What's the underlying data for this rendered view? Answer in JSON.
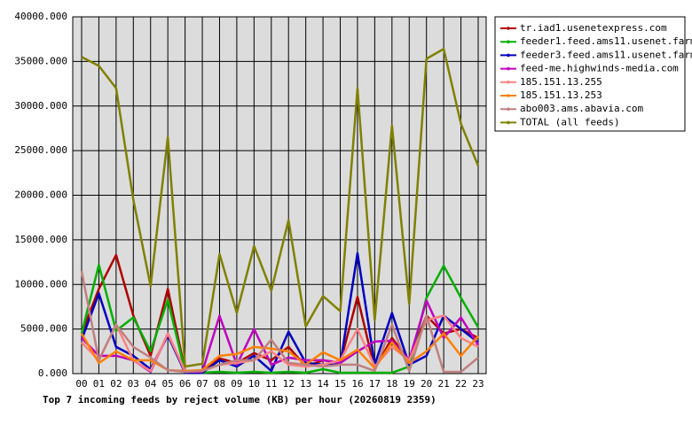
{
  "chart_data": {
    "type": "line",
    "title": "Top 7 incoming feeds by reject volume (KB) per hour (20260819 2359)",
    "categories": [
      "00",
      "01",
      "02",
      "03",
      "04",
      "05",
      "06",
      "07",
      "08",
      "09",
      "10",
      "11",
      "12",
      "13",
      "14",
      "15",
      "16",
      "17",
      "18",
      "19",
      "20",
      "21",
      "22",
      "23"
    ],
    "ylim": [
      0,
      40000
    ],
    "yticks": [
      {
        "value": 0,
        "label": "0.000"
      },
      {
        "value": 5000,
        "label": "5000.000"
      },
      {
        "value": 10000,
        "label": "10000.000"
      },
      {
        "value": 15000,
        "label": "15000.000"
      },
      {
        "value": 20000,
        "label": "20000.000"
      },
      {
        "value": 25000,
        "label": "25000.000"
      },
      {
        "value": 30000,
        "label": "30000.000"
      },
      {
        "value": 35000,
        "label": "35000.000"
      },
      {
        "value": 40000,
        "label": "40000.000"
      }
    ],
    "grid": true,
    "legend": "outside-right",
    "series": [
      {
        "name": "tr.iad1.usenetexpress.com",
        "color": "#b00000",
        "values": [
          4500,
          9500,
          13300,
          6500,
          2000,
          9500,
          300,
          300,
          1700,
          1200,
          2300,
          1500,
          3000,
          800,
          1500,
          1200,
          8600,
          500,
          4000,
          1500,
          6500,
          4500,
          5000,
          4000
        ]
      },
      {
        "name": "feeder1.feed.ams11.usenet.farm",
        "color": "#00b000",
        "values": [
          4500,
          12200,
          4800,
          6300,
          2500,
          8300,
          200,
          100,
          200,
          100,
          200,
          100,
          200,
          100,
          500,
          100,
          100,
          100,
          100,
          800,
          8500,
          12100,
          8500,
          5200
        ]
      },
      {
        "name": "feeder3.feed.ams11.usenet.farm",
        "color": "#0000c0",
        "values": [
          3800,
          9000,
          3000,
          2000,
          500,
          4300,
          100,
          100,
          1500,
          800,
          2000,
          300,
          4700,
          1200,
          1000,
          1000,
          13500,
          1000,
          6800,
          1000,
          2000,
          6500,
          5000,
          3500
        ]
      },
      {
        "name": "feed-me.highwinds-media.com",
        "color": "#c000c0",
        "values": [
          4000,
          2000,
          2000,
          1500,
          200,
          4500,
          200,
          200,
          6500,
          1000,
          5000,
          1000,
          1800,
          1500,
          1500,
          1200,
          2500,
          3600,
          3700,
          1500,
          8200,
          4000,
          6300,
          3200
        ]
      },
      {
        "name": "185.151.13.255",
        "color": "#ff8080",
        "values": [
          3500,
          1500,
          5500,
          1500,
          300,
          4500,
          300,
          300,
          1000,
          1200,
          1500,
          2500,
          1000,
          800,
          1000,
          1500,
          5000,
          800,
          3000,
          1500,
          6000,
          6500,
          4000,
          3000
        ]
      },
      {
        "name": "185.151.13.253",
        "color": "#ff8000",
        "values": [
          4500,
          1200,
          2500,
          1500,
          1500,
          400,
          300,
          400,
          2000,
          2200,
          3000,
          2800,
          2500,
          1000,
          2400,
          1500,
          2700,
          600,
          3500,
          1200,
          2500,
          4500,
          2000,
          4200
        ]
      },
      {
        "name": "abo003.ams.abavia.com",
        "color": "#c08080",
        "values": [
          11500,
          1500,
          5500,
          3000,
          1800,
          400,
          200,
          300,
          1000,
          1500,
          1500,
          3800,
          1200,
          1000,
          800,
          1000,
          1000,
          300,
          5500,
          300,
          6500,
          200,
          200,
          1800
        ]
      },
      {
        "name": "TOTAL (all feeds)",
        "color": "#808000",
        "values": [
          35500,
          34500,
          32000,
          19500,
          9800,
          26500,
          800,
          1100,
          13400,
          6800,
          14300,
          9300,
          17200,
          5300,
          8700,
          7000,
          32000,
          6000,
          27800,
          7800,
          35300,
          36400,
          28000,
          23300
        ]
      }
    ]
  }
}
